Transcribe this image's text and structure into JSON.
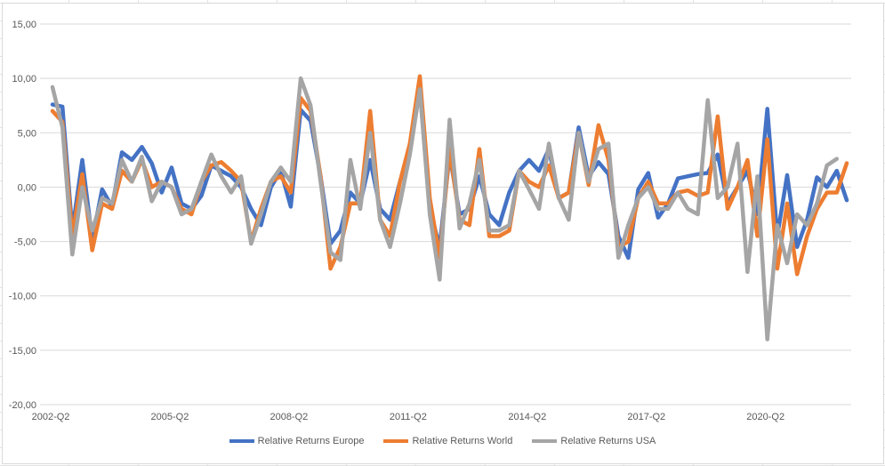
{
  "chart_data": {
    "type": "line",
    "title": "",
    "xlabel": "",
    "ylabel": "",
    "ylim": [
      -20,
      15
    ],
    "y_ticks": [
      15,
      10,
      5,
      0,
      -5,
      -10,
      -15,
      -20
    ],
    "y_tick_labels": [
      "15,00",
      "10,00",
      "5,00",
      "0,00",
      "-5,00",
      "-10,00",
      "-15,00",
      "-20,00"
    ],
    "x_tick_labels": [
      "2002-Q2",
      "2005-Q2",
      "2008-Q2",
      "2011-Q2",
      "2014-Q2",
      "2017-Q2",
      "2020-Q2"
    ],
    "x_tick_step": 12,
    "grid": true,
    "legend_position": "bottom",
    "series": [
      {
        "name": "Relative Returns Europe",
        "color": "#4472C4",
        "values": [
          7.6,
          7.4,
          -4.0,
          2.5,
          -4.8,
          -0.2,
          -1.8,
          3.2,
          2.5,
          3.7,
          2.2,
          -0.5,
          1.8,
          -1.5,
          -2.0,
          -0.8,
          2.0,
          1.5,
          1.0,
          0.0,
          -2.0,
          -3.5,
          0.0,
          1.5,
          -1.8,
          7.1,
          6.1,
          1.0,
          -5.2,
          -4.0,
          -0.5,
          -1.5,
          2.5,
          -2.0,
          -3.0,
          0.5,
          3.5,
          9.0,
          -2.0,
          -5.5,
          3.0,
          -2.5,
          -2.0,
          1.0,
          -2.5,
          -3.5,
          -0.5,
          1.5,
          2.5,
          1.5,
          3.5,
          -1.0,
          -0.5,
          5.5,
          1.0,
          2.3,
          1.2,
          -4.5,
          -6.5,
          -0.2,
          1.3,
          -2.8,
          -1.5,
          0.8,
          1.0,
          1.2,
          1.3,
          3.0,
          -1.5,
          0.0,
          1.5,
          -2.5,
          7.2,
          -4.5,
          1.1,
          -5.5,
          -3.0,
          0.9,
          0.0,
          1.5,
          -1.2
        ],
        "point_count_shown": "81"
      },
      {
        "name": "Relative Returns World",
        "color": "#ED7D31",
        "values": [
          7.0,
          6.0,
          -4.5,
          1.2,
          -5.8,
          -1.5,
          -2.0,
          1.5,
          0.5,
          2.5,
          0.0,
          0.5,
          0.0,
          -2.0,
          -2.5,
          0.5,
          2.0,
          2.3,
          1.5,
          0.5,
          -5.0,
          -2.0,
          0.5,
          1.0,
          -0.5,
          8.2,
          7.0,
          1.0,
          -7.5,
          -5.5,
          -1.5,
          -1.5,
          7.0,
          -3.0,
          -4.5,
          0.5,
          4.0,
          10.2,
          -1.0,
          -6.5,
          3.5,
          -3.0,
          -3.5,
          3.5,
          -4.5,
          -4.5,
          -4.0,
          1.5,
          0.5,
          0.0,
          2.0,
          -1.0,
          -0.5,
          5.0,
          0.2,
          5.7,
          2.5,
          -5.5,
          -5.0,
          -1.0,
          0.5,
          -1.5,
          -1.5,
          -0.5,
          -0.3,
          -0.8,
          -0.5,
          6.5,
          -2.0,
          0.0,
          2.5,
          -4.5,
          4.4,
          -7.5,
          -1.5,
          -8.0,
          -4.5,
          -2.0,
          -0.5,
          -0.5,
          2.2
        ],
        "point_count_shown": "81"
      },
      {
        "name": "Relative Returns USA",
        "color": "#A5A5A5",
        "values": [
          9.2,
          5.5,
          -6.2,
          0.0,
          -4.0,
          -1.0,
          -1.5,
          2.5,
          0.5,
          2.8,
          -1.3,
          0.5,
          0.0,
          -2.5,
          -2.0,
          0.5,
          3.0,
          1.0,
          -0.5,
          1.0,
          -5.2,
          -2.5,
          0.5,
          1.8,
          0.5,
          10.0,
          7.5,
          0.5,
          -6.0,
          -6.7,
          2.5,
          -2.0,
          5.0,
          -3.0,
          -5.5,
          -1.5,
          3.0,
          9.0,
          -2.5,
          -8.5,
          6.2,
          -3.8,
          -1.5,
          2.5,
          -4.0,
          -4.0,
          -3.5,
          1.5,
          -0.2,
          -2.0,
          4.0,
          -1.0,
          -3.0,
          5.0,
          0.5,
          3.5,
          4.0,
          -6.5,
          -3.5,
          -1.0,
          0.0,
          -2.0,
          -2.0,
          -0.5,
          -2.0,
          -2.5,
          8.0,
          -1.0,
          0.0,
          4.0,
          -7.8,
          1.0,
          -14.0,
          -3.5,
          -7.0,
          -2.5,
          -3.5,
          -1.5,
          2.0,
          2.6
        ],
        "point_count_shown": "80"
      }
    ]
  }
}
